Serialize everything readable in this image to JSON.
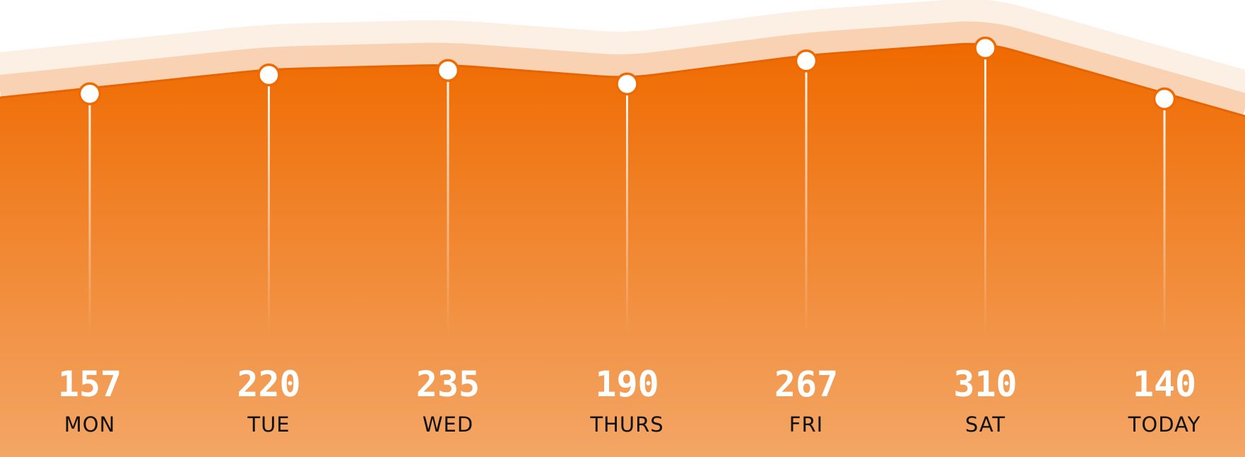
{
  "chart_data": {
    "type": "area",
    "categories": [
      "MON",
      "TUE",
      "WED",
      "THURS",
      "FRI",
      "SAT",
      "TODAY"
    ],
    "values": [
      157,
      220,
      235,
      190,
      267,
      310,
      140
    ],
    "title": "",
    "xlabel": "",
    "ylabel": "",
    "grid": false,
    "legend": "none"
  },
  "colors": {
    "area_top": "#ef6a00",
    "area_bottom": "#f3a666",
    "band_inner": "#f9d2b4",
    "band_outer": "#fcefe4",
    "marker_fill": "#ffffff",
    "marker_stroke": "#ef6a00"
  }
}
